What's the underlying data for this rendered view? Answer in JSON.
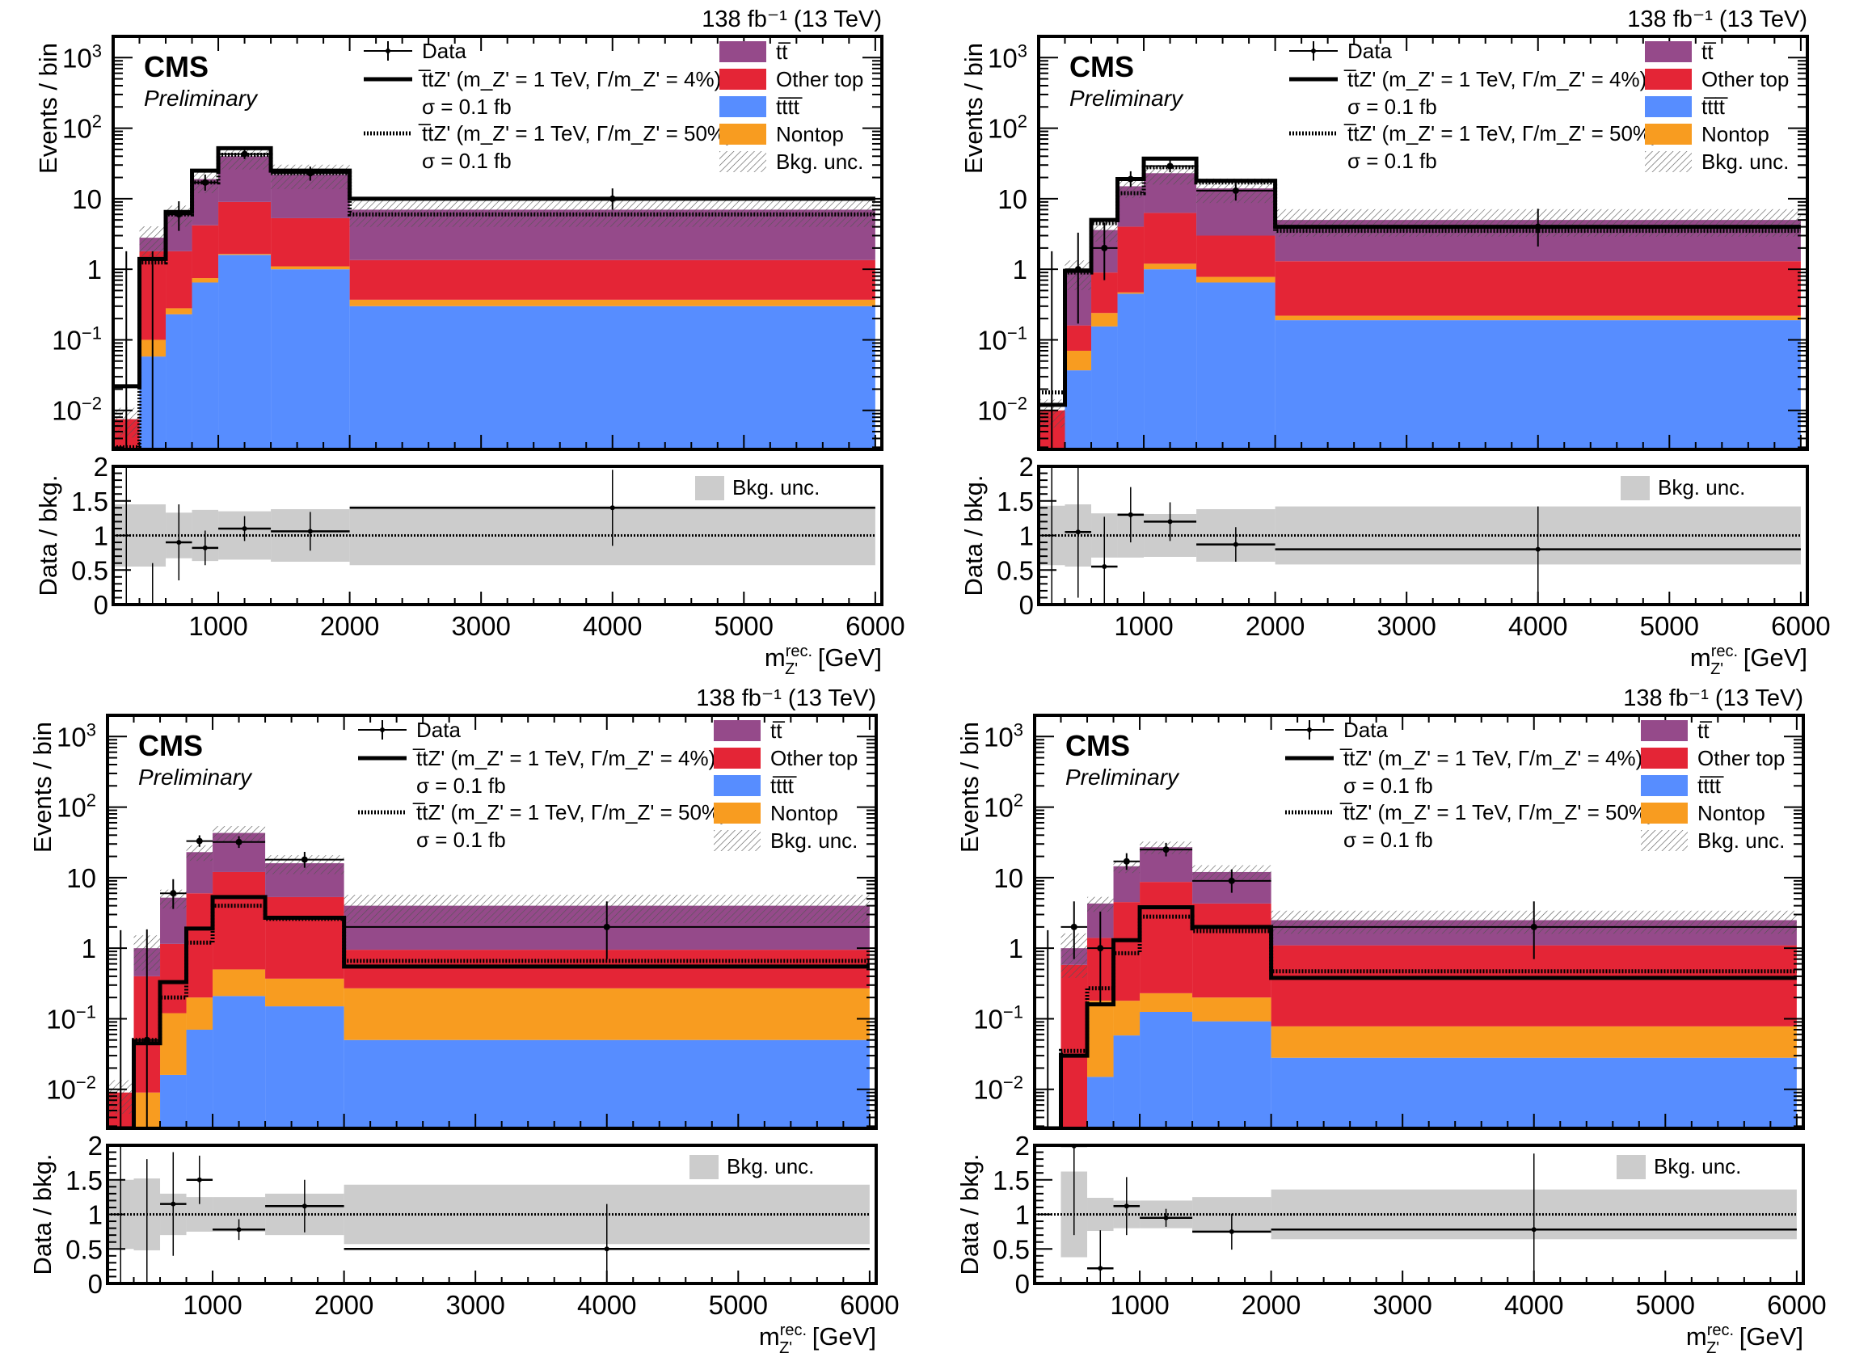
{
  "figure": {
    "experiment_label": "CMS",
    "status_label": "Preliminary",
    "lumi_label": "138 fb⁻¹ (13 TeV)"
  },
  "legend": {
    "data": "Data",
    "signal_narrow_line1": "t̅tZ' (m_Z' = 1 TeV, Γ/m_Z' = 4%)",
    "signal_narrow_line2": "σ = 0.1 fb",
    "signal_wide_line1": "t̅tZ' (m_Z' = 1 TeV, Γ/m_Z' = 50%)",
    "signal_wide_line2": "σ = 0.1 fb",
    "bkg_tt": "tt̅",
    "bkg_othertop": "Other top",
    "bkg_tttt": "tt̅tt̅",
    "bkg_nontop": "Nontop",
    "bkg_unc": "Bkg. unc.",
    "ratio_unc": "Bkg. unc."
  },
  "colors": {
    "tt": "#954a8a",
    "othertop": "#e42536",
    "tttt": "#578dff",
    "nontop": "#f89c20",
    "ratio_band": "#cccccc"
  },
  "chart_data": [
    {
      "type": "bar",
      "panel": "top-left",
      "stacked": true,
      "log_y": true,
      "xlabel": "m_Z'^rec. [GeV]",
      "ylabel": "Events / bin",
      "ratio_ylabel": "Data / bkg.",
      "xlim": [
        200,
        6050
      ],
      "ylim": [
        0.0028,
        2000
      ],
      "ratio_ylim": [
        0,
        2
      ],
      "x_ticks": [
        1000,
        2000,
        3000,
        4000,
        5000,
        6000
      ],
      "y_ticks": [
        "10^-2",
        "10^-1",
        "1",
        "10",
        "10^2",
        "10^3"
      ],
      "ratio_ticks": [
        "0",
        "0.5",
        "1",
        "1.5",
        "2"
      ],
      "bin_edges": [
        200,
        400,
        600,
        800,
        1000,
        1400,
        2000,
        6000
      ],
      "series": [
        {
          "name": "tttt",
          "values": [
            0,
            0.058,
            0.23,
            0.65,
            1.6,
            1.0,
            0.3
          ]
        },
        {
          "name": "Nontop",
          "values": [
            0,
            0.042,
            0.05,
            0.1,
            0.05,
            0.1,
            0.07
          ]
        },
        {
          "name": "Other top",
          "values": [
            0.0075,
            1.7,
            1.52,
            3.45,
            7.35,
            4.2,
            0.98
          ]
        },
        {
          "name": "tt",
          "values": [
            0,
            1.0,
            4.2,
            14.8,
            31,
            16.7,
            5.65
          ]
        }
      ],
      "signal_4pct": [
        0.022,
        1.4,
        6.5,
        25,
        52,
        25,
        10
      ],
      "signal_50pct": [
        0.003,
        1.25,
        6,
        17,
        42,
        23,
        6
      ],
      "data": [
        0,
        0,
        6,
        17,
        43,
        23,
        10
      ],
      "data_err_up": [
        1.8,
        1.8,
        3.2,
        5,
        7,
        5.5,
        4
      ],
      "data_err_down": [
        0,
        0,
        2.5,
        4,
        6.5,
        5,
        3
      ],
      "ratio": [
        0,
        0,
        0.9,
        0.82,
        1.1,
        1.06,
        1.4
      ],
      "ratio_err": [
        2.0,
        0.6,
        0.55,
        0.25,
        0.18,
        0.28,
        0.55
      ],
      "ratio_band_halfwidth": [
        0.45,
        0.45,
        0.33,
        0.37,
        0.35,
        0.38,
        0.43
      ]
    },
    {
      "type": "bar",
      "panel": "top-right",
      "stacked": true,
      "log_y": true,
      "xlabel": "m_Z'^rec. [GeV]",
      "ylabel": "Events / bin",
      "ratio_ylabel": "Data / bkg.",
      "xlim": [
        200,
        6050
      ],
      "ylim": [
        0.0028,
        2000
      ],
      "ratio_ylim": [
        0,
        2
      ],
      "x_ticks": [
        1000,
        2000,
        3000,
        4000,
        5000,
        6000
      ],
      "y_ticks": [
        "10^-2",
        "10^-1",
        "1",
        "10",
        "10^2",
        "10^3"
      ],
      "ratio_ticks": [
        "0",
        "0.5",
        "1",
        "1.5",
        "2"
      ],
      "bin_edges": [
        200,
        400,
        600,
        800,
        1000,
        1400,
        2000,
        6000
      ],
      "series": [
        {
          "name": "tttt",
          "values": [
            0,
            0.037,
            0.155,
            0.45,
            1.0,
            0.65,
            0.19
          ]
        },
        {
          "name": "Nontop",
          "values": [
            0,
            0.033,
            0.085,
            0.02,
            0.2,
            0.13,
            0.03
          ]
        },
        {
          "name": "Other top",
          "values": [
            0.01,
            0.09,
            0.66,
            3.55,
            5.1,
            2.22,
            1.08
          ]
        },
        {
          "name": "tt",
          "values": [
            0,
            0.76,
            2.7,
            11,
            16.7,
            11,
            3.7
          ]
        }
      ],
      "signal_4pct": [
        0.012,
        0.95,
        5,
        19,
        37,
        18,
        4
      ],
      "signal_50pct": [
        0.018,
        0.9,
        4.5,
        12,
        28,
        17,
        3.5
      ],
      "data": [
        0,
        1,
        2,
        19,
        29,
        13,
        4
      ],
      "data_err_up": [
        1.8,
        2.3,
        2.6,
        5.5,
        6.5,
        4.7,
        3.2
      ],
      "data_err_down": [
        0,
        0.83,
        1.3,
        4.3,
        5.3,
        3.6,
        1.9
      ],
      "ratio": [
        0,
        1.05,
        0.55,
        1.3,
        1.2,
        0.87,
        0.8
      ],
      "ratio_err": [
        2.0,
        0.95,
        0.72,
        0.4,
        0.28,
        0.25,
        0.62
      ],
      "ratio_band_halfwidth": [
        0.43,
        0.45,
        0.32,
        0.32,
        0.31,
        0.38,
        0.42
      ]
    },
    {
      "type": "bar",
      "panel": "bottom-left",
      "stacked": true,
      "log_y": true,
      "xlabel": "m_Z'^rec. [GeV]",
      "ylabel": "Events / bin",
      "ratio_ylabel": "Data / bkg.",
      "xlim": [
        200,
        6050
      ],
      "ylim": [
        0.0028,
        2000
      ],
      "ratio_ylim": [
        0,
        2
      ],
      "x_ticks": [
        1000,
        2000,
        3000,
        4000,
        5000,
        6000
      ],
      "y_ticks": [
        "10^-2",
        "10^-1",
        "1",
        "10",
        "10^2",
        "10^3"
      ],
      "ratio_ticks": [
        "0",
        "0.5",
        "1",
        "1.5",
        "2"
      ],
      "bin_edges": [
        200,
        400,
        600,
        800,
        1000,
        1400,
        2000,
        6000
      ],
      "series": [
        {
          "name": "tttt",
          "values": [
            0,
            0,
            0.016,
            0.07,
            0.21,
            0.15,
            0.05
          ]
        },
        {
          "name": "Nontop",
          "values": [
            0,
            0.009,
            0.104,
            0.13,
            0.29,
            0.22,
            0.22
          ]
        },
        {
          "name": "Other top",
          "values": [
            0.009,
            0.391,
            1.03,
            5.8,
            11.5,
            4.93,
            0.68
          ]
        },
        {
          "name": "tt",
          "values": [
            0,
            0.6,
            4.05,
            17,
            31,
            10.7,
            3.05
          ]
        }
      ],
      "signal_4pct": [
        0.002,
        0.045,
        0.33,
        1.9,
        5.3,
        2.7,
        0.55
      ],
      "signal_50pct": [
        0,
        0.05,
        0.2,
        1.2,
        4.0,
        2.6,
        0.66
      ],
      "data": [
        0,
        0.05,
        6,
        33,
        32,
        18,
        2
      ],
      "data_err_up": [
        1.8,
        1.8,
        3.5,
        6.8,
        6.7,
        5.2,
        2.6
      ],
      "data_err_down": [
        0,
        0.05,
        2.4,
        5.7,
        5.6,
        4.2,
        1.3
      ],
      "ratio": [
        0,
        0,
        1.15,
        1.5,
        0.78,
        1.12,
        0.5
      ],
      "ratio_err": [
        2.0,
        1.8,
        0.75,
        0.35,
        0.15,
        0.38,
        0.65
      ],
      "ratio_band_halfwidth": [
        0.5,
        0.52,
        0.3,
        0.25,
        0.25,
        0.3,
        0.43
      ]
    },
    {
      "type": "bar",
      "panel": "bottom-right",
      "stacked": true,
      "log_y": true,
      "xlabel": "m_Z'^rec. [GeV]",
      "ylabel": "Events / bin",
      "ratio_ylabel": "Data / bkg.",
      "xlim": [
        200,
        6050
      ],
      "ylim": [
        0.0028,
        2000
      ],
      "ratio_ylim": [
        0,
        2
      ],
      "x_ticks": [
        1000,
        2000,
        3000,
        4000,
        5000,
        6000
      ],
      "y_ticks": [
        "10^-2",
        "10^-1",
        "1",
        "10",
        "10^2",
        "10^3"
      ],
      "ratio_ticks": [
        "0",
        "0.5",
        "1",
        "1.5",
        "2"
      ],
      "bin_edges": [
        200,
        400,
        600,
        800,
        1000,
        1400,
        2000,
        6000
      ],
      "series": [
        {
          "name": "tttt",
          "values": [
            0,
            0,
            0.015,
            0.058,
            0.125,
            0.092,
            0.028
          ]
        },
        {
          "name": "Nontop",
          "values": [
            0,
            0,
            0.165,
            0.122,
            0.105,
            0.108,
            0.05
          ]
        },
        {
          "name": "Other top",
          "values": [
            0,
            0.58,
            1.22,
            4.32,
            8.47,
            4.1,
            1.02
          ]
        },
        {
          "name": "tt",
          "values": [
            0.0025,
            0.42,
            2.9,
            10,
            18.3,
            7.7,
            1.4
          ]
        }
      ],
      "signal_4pct": [
        0.002,
        0.03,
        0.16,
        1.3,
        3.8,
        2.0,
        0.38
      ],
      "signal_50pct": [
        0,
        0.035,
        0.27,
        0.85,
        2.8,
        1.75,
        0.47
      ],
      "data": [
        0,
        2,
        1,
        17,
        25,
        9,
        2
      ],
      "data_err_up": [
        1.8,
        2.6,
        2.3,
        5.2,
        6.1,
        4.1,
        2.6
      ],
      "data_err_down": [
        0,
        1.3,
        0.83,
        4.1,
        5.0,
        2.9,
        1.3
      ],
      "ratio": [
        null,
        2.0,
        0.22,
        1.12,
        0.95,
        0.75,
        0.78
      ],
      "ratio_err": [
        0,
        1.3,
        0.55,
        0.42,
        0.13,
        0.26,
        1.1
      ],
      "ratio_band_halfwidth": [
        0,
        0.62,
        0.24,
        0.2,
        0.2,
        0.25,
        0.36
      ]
    }
  ]
}
